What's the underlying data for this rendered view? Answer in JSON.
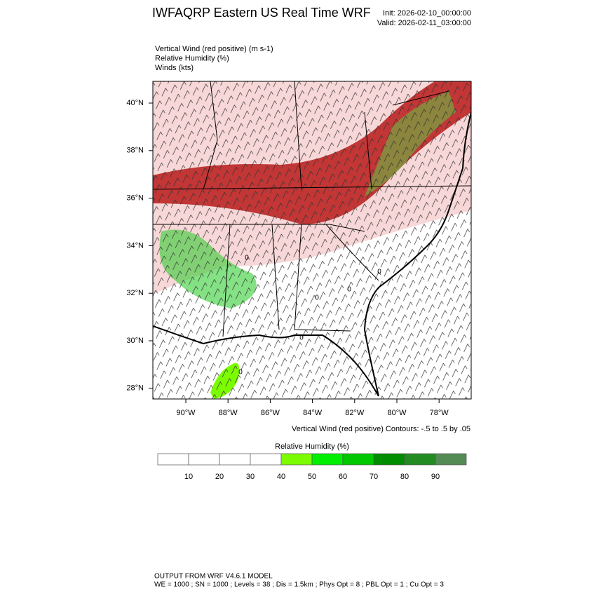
{
  "header": {
    "title": "IWFAQRP Eastern US Real Time WRF",
    "init": "Init: 2026-02-10_00:00:00",
    "valid": "Valid: 2026-02-11_03:00:00"
  },
  "fields": [
    "Vertical Wind (red positive)   (m s-1)",
    "Relative Humidity   (%)",
    "Winds   (kts)"
  ],
  "map": {
    "lat_labels": [
      "40°N",
      "38°N",
      "36°N",
      "34°N",
      "32°N",
      "30°N",
      "28°N"
    ],
    "lon_labels": [
      "90°W",
      "88°W",
      "86°W",
      "84°W",
      "82°W",
      "80°W",
      "78°W"
    ],
    "contour_labels": [
      "0",
      "0",
      "0",
      "0",
      "0",
      "0"
    ],
    "contour_note": "Vertical Wind (red positive) Contours: -.5 to .5 by .05"
  },
  "colorbar": {
    "title": "Relative Humidity  (%)",
    "labels": [
      "10",
      "20",
      "30",
      "40",
      "50",
      "60",
      "70",
      "80",
      "90"
    ],
    "colors": [
      "#ffffff",
      "#ffffff",
      "#ffffff",
      "#ffffff",
      "#7cfc00",
      "#00ee00",
      "#00c800",
      "#008c00",
      "#228b22",
      "#548b54"
    ]
  },
  "footer": [
    "OUTPUT FROM WRF V4.6.1 MODEL",
    "WE = 1000 ; SN = 1000 ; Levels = 38 ; Dis = 1.5km ; Phys Opt = 8 ; PBL Opt = 1 ; Cu Opt = 3"
  ]
}
